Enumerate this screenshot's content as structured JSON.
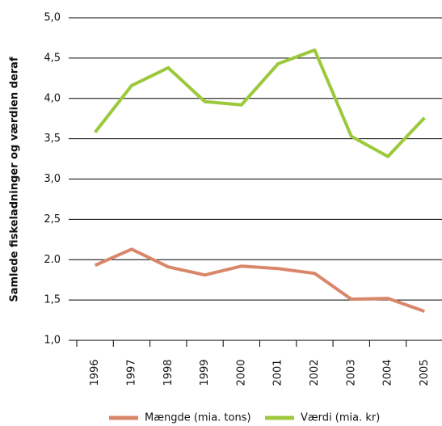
{
  "chart_data": {
    "type": "line",
    "y_label": "Samlede fiskeladninger og værdien deraf",
    "categories": [
      "1996",
      "1997",
      "1998",
      "1999",
      "2000",
      "2001",
      "2002",
      "2003",
      "2004",
      "2005"
    ],
    "series": [
      {
        "name": "Mængde (mia. tons)",
        "color": "#d9876a",
        "values": [
          1.93,
          2.13,
          1.91,
          1.81,
          1.92,
          1.89,
          1.83,
          1.51,
          1.52,
          1.36
        ]
      },
      {
        "name": "Værdi (mia. kr)",
        "color": "#9cc83c",
        "values": [
          3.58,
          4.16,
          4.38,
          3.96,
          3.92,
          4.43,
          4.6,
          3.53,
          3.28,
          3.76
        ]
      }
    ],
    "ylim": [
      1.0,
      5.0
    ],
    "yticks": [
      {
        "value": 1.0,
        "label": "1,0"
      },
      {
        "value": 1.5,
        "label": "1,5"
      },
      {
        "value": 2.0,
        "label": "2.0"
      },
      {
        "value": 2.5,
        "label": "2,5"
      },
      {
        "value": 3.0,
        "label": "3,0"
      },
      {
        "value": 3.5,
        "label": "3,5"
      },
      {
        "value": 4.0,
        "label": "4,0"
      },
      {
        "value": 4.5,
        "label": "4,5"
      },
      {
        "value": 5.0,
        "label": "5,0"
      }
    ],
    "grid": true
  }
}
